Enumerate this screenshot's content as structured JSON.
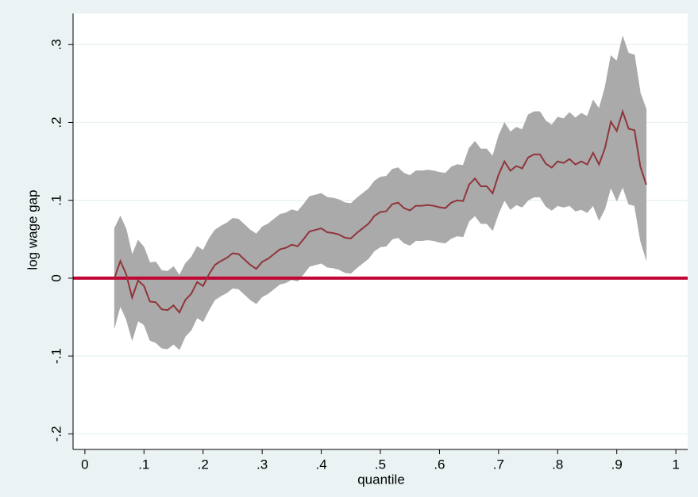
{
  "chart_data": {
    "type": "line",
    "x_label": "quantile",
    "y_label": "log wage gap",
    "x": [
      0.05,
      0.06,
      0.07,
      0.08,
      0.09,
      0.1,
      0.11,
      0.12,
      0.13,
      0.14,
      0.15,
      0.16,
      0.17,
      0.18,
      0.19,
      0.2,
      0.21,
      0.22,
      0.23,
      0.24,
      0.25,
      0.26,
      0.27,
      0.28,
      0.29,
      0.3,
      0.31,
      0.32,
      0.33,
      0.34,
      0.35,
      0.36,
      0.37,
      0.38,
      0.39,
      0.4,
      0.41,
      0.42,
      0.43,
      0.44,
      0.45,
      0.46,
      0.47,
      0.48,
      0.49,
      0.5,
      0.51,
      0.52,
      0.53,
      0.54,
      0.55,
      0.56,
      0.57,
      0.58,
      0.59,
      0.6,
      0.61,
      0.62,
      0.63,
      0.64,
      0.65,
      0.66,
      0.67,
      0.68,
      0.69,
      0.7,
      0.71,
      0.72,
      0.73,
      0.74,
      0.75,
      0.76,
      0.77,
      0.78,
      0.79,
      0.8,
      0.81,
      0.82,
      0.83,
      0.84,
      0.85,
      0.86,
      0.87,
      0.88,
      0.89,
      0.9,
      0.91,
      0.92,
      0.93,
      0.94,
      0.95
    ],
    "band": {
      "color": "#aaaaaa",
      "lower": [
        -0.064,
        -0.036,
        -0.053,
        -0.08,
        -0.055,
        -0.06,
        -0.08,
        -0.083,
        -0.09,
        -0.091,
        -0.085,
        -0.092,
        -0.075,
        -0.067,
        -0.051,
        -0.056,
        -0.041,
        -0.028,
        -0.023,
        -0.019,
        -0.013,
        -0.014,
        -0.021,
        -0.028,
        -0.033,
        -0.024,
        -0.02,
        -0.014,
        -0.008,
        -0.006,
        -0.002,
        -0.004,
        0.005,
        0.015,
        0.017,
        0.019,
        0.014,
        0.013,
        0.011,
        0.007,
        0.006,
        0.013,
        0.019,
        0.025,
        0.035,
        0.04,
        0.041,
        0.05,
        0.052,
        0.045,
        0.042,
        0.048,
        0.048,
        0.049,
        0.048,
        0.046,
        0.045,
        0.051,
        0.054,
        0.053,
        0.073,
        0.08,
        0.07,
        0.07,
        0.061,
        0.083,
        0.1,
        0.088,
        0.094,
        0.091,
        0.1,
        0.104,
        0.104,
        0.092,
        0.087,
        0.093,
        0.091,
        0.093,
        0.086,
        0.088,
        0.084,
        0.093,
        0.074,
        0.089,
        0.116,
        0.099,
        0.117,
        0.095,
        0.093,
        0.048,
        0.023
      ],
      "upper": [
        0.064,
        0.08,
        0.063,
        0.03,
        0.049,
        0.04,
        0.02,
        0.021,
        0.01,
        0.009,
        0.015,
        0.004,
        0.019,
        0.027,
        0.041,
        0.036,
        0.051,
        0.062,
        0.067,
        0.071,
        0.077,
        0.076,
        0.069,
        0.062,
        0.057,
        0.066,
        0.07,
        0.076,
        0.082,
        0.084,
        0.088,
        0.086,
        0.095,
        0.105,
        0.107,
        0.109,
        0.104,
        0.103,
        0.101,
        0.097,
        0.096,
        0.103,
        0.109,
        0.115,
        0.125,
        0.13,
        0.131,
        0.14,
        0.142,
        0.135,
        0.132,
        0.138,
        0.138,
        0.139,
        0.138,
        0.136,
        0.135,
        0.143,
        0.146,
        0.145,
        0.167,
        0.176,
        0.166,
        0.166,
        0.157,
        0.183,
        0.2,
        0.188,
        0.194,
        0.191,
        0.21,
        0.214,
        0.214,
        0.202,
        0.197,
        0.207,
        0.205,
        0.213,
        0.206,
        0.212,
        0.208,
        0.229,
        0.218,
        0.245,
        0.286,
        0.279,
        0.311,
        0.289,
        0.287,
        0.238,
        0.217
      ]
    },
    "series": [
      {
        "color": "#90353b",
        "values": [
          0.0,
          0.022,
          0.005,
          -0.025,
          -0.003,
          -0.01,
          -0.03,
          -0.031,
          -0.04,
          -0.041,
          -0.035,
          -0.044,
          -0.028,
          -0.02,
          -0.005,
          -0.01,
          0.005,
          0.017,
          0.022,
          0.026,
          0.032,
          0.031,
          0.024,
          0.017,
          0.012,
          0.021,
          0.025,
          0.031,
          0.037,
          0.039,
          0.043,
          0.041,
          0.05,
          0.06,
          0.062,
          0.064,
          0.059,
          0.058,
          0.056,
          0.052,
          0.051,
          0.058,
          0.064,
          0.07,
          0.08,
          0.085,
          0.086,
          0.095,
          0.097,
          0.09,
          0.087,
          0.093,
          0.093,
          0.094,
          0.093,
          0.091,
          0.09,
          0.097,
          0.1,
          0.099,
          0.12,
          0.128,
          0.118,
          0.118,
          0.109,
          0.133,
          0.15,
          0.138,
          0.144,
          0.141,
          0.155,
          0.159,
          0.159,
          0.147,
          0.142,
          0.15,
          0.148,
          0.153,
          0.146,
          0.15,
          0.146,
          0.161,
          0.146,
          0.167,
          0.201,
          0.189,
          0.214,
          0.192,
          0.19,
          0.143,
          0.12
        ]
      }
    ],
    "reference_line": {
      "y": 0,
      "color": "#c10534"
    },
    "xlim": [
      -0.02,
      1.02
    ],
    "ylim": [
      -0.22,
      0.34
    ],
    "xticks": [
      {
        "value": 0,
        "label": "0"
      },
      {
        "value": 0.1,
        "label": ".1"
      },
      {
        "value": 0.2,
        "label": ".2"
      },
      {
        "value": 0.3,
        "label": ".3"
      },
      {
        "value": 0.4,
        "label": ".4"
      },
      {
        "value": 0.5,
        "label": ".5"
      },
      {
        "value": 0.6,
        "label": ".6"
      },
      {
        "value": 0.7,
        "label": ".7"
      },
      {
        "value": 0.8,
        "label": ".8"
      },
      {
        "value": 0.9,
        "label": ".9"
      },
      {
        "value": 1,
        "label": "1"
      }
    ],
    "yticks": [
      {
        "value": -0.2,
        "label": "-.2"
      },
      {
        "value": -0.1,
        "label": "-.1"
      },
      {
        "value": 0,
        "label": "0"
      },
      {
        "value": 0.1,
        "label": ".1"
      },
      {
        "value": 0.2,
        "label": ".2"
      },
      {
        "value": 0.3,
        "label": ".3"
      }
    ],
    "grid": true
  }
}
